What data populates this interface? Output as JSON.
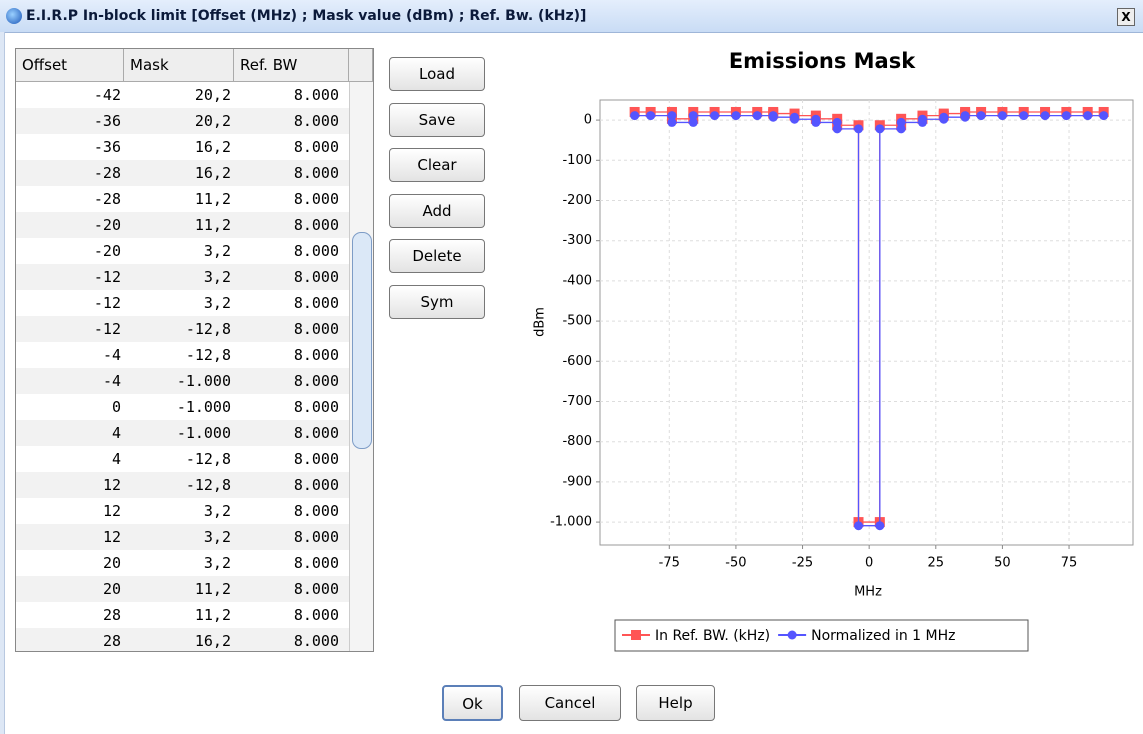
{
  "window": {
    "title": "E.I.R.P In-block limit [Offset (MHz) ; Mask value (dBm) ; Ref. Bw. (kHz)]",
    "close": "X"
  },
  "table": {
    "columns": [
      "Offset",
      "Mask",
      "Ref. BW"
    ],
    "rows": [
      [
        "-42",
        "20,2",
        "8.000"
      ],
      [
        "-36",
        "20,2",
        "8.000"
      ],
      [
        "-36",
        "16,2",
        "8.000"
      ],
      [
        "-28",
        "16,2",
        "8.000"
      ],
      [
        "-28",
        "11,2",
        "8.000"
      ],
      [
        "-20",
        "11,2",
        "8.000"
      ],
      [
        "-20",
        "3,2",
        "8.000"
      ],
      [
        "-12",
        "3,2",
        "8.000"
      ],
      [
        "-12",
        "3,2",
        "8.000"
      ],
      [
        "-12",
        "-12,8",
        "8.000"
      ],
      [
        "-4",
        "-12,8",
        "8.000"
      ],
      [
        "-4",
        "-1.000",
        "8.000"
      ],
      [
        "0",
        "-1.000",
        "8.000"
      ],
      [
        "4",
        "-1.000",
        "8.000"
      ],
      [
        "4",
        "-12,8",
        "8.000"
      ],
      [
        "12",
        "-12,8",
        "8.000"
      ],
      [
        "12",
        "3,2",
        "8.000"
      ],
      [
        "12",
        "3,2",
        "8.000"
      ],
      [
        "20",
        "3,2",
        "8.000"
      ],
      [
        "20",
        "11,2",
        "8.000"
      ],
      [
        "28",
        "11,2",
        "8.000"
      ],
      [
        "28",
        "16,2",
        "8.000"
      ]
    ]
  },
  "side_buttons": [
    "Load",
    "Save",
    "Clear",
    "Add",
    "Delete",
    "Sym"
  ],
  "bottom_buttons": [
    "Ok",
    "Cancel",
    "Help"
  ],
  "chart_data": {
    "type": "line",
    "title": "Emissions Mask",
    "x_label": "MHz",
    "y_label": "dBm",
    "x": [
      -88,
      -82,
      -74,
      -74,
      -66,
      -66,
      -58,
      -50,
      -42,
      -36,
      -36,
      -28,
      -28,
      -20,
      -20,
      -12,
      -12,
      -4,
      -4,
      4,
      4,
      12,
      12,
      20,
      20,
      28,
      28,
      36,
      36,
      42,
      50,
      58,
      66,
      74,
      82,
      88
    ],
    "series": [
      {
        "name": "In Ref. BW. (kHz)",
        "color": "#ff5555",
        "marker": "square",
        "values": [
          20.2,
          20.2,
          20.2,
          3.2,
          3.2,
          20.2,
          20.2,
          20.2,
          20.2,
          20.2,
          16.2,
          16.2,
          11.2,
          11.2,
          3.2,
          3.2,
          -12.8,
          -12.8,
          -1000,
          -1000,
          -12.8,
          -12.8,
          3.2,
          3.2,
          11.2,
          11.2,
          16.2,
          16.2,
          20.2,
          20.2,
          20.2,
          20.2,
          20.2,
          20.2,
          20.2,
          20.2
        ]
      },
      {
        "name": "Normalized in 1 MHz",
        "color": "#5555ff",
        "marker": "circle",
        "values": [
          11.2,
          11.2,
          11.2,
          -5.8,
          -5.8,
          11.2,
          11.2,
          11.2,
          11.2,
          11.2,
          7.2,
          7.2,
          2.2,
          2.2,
          -5.8,
          -5.8,
          -21.8,
          -21.8,
          -1009,
          -1009,
          -21.8,
          -21.8,
          -5.8,
          -5.8,
          2.2,
          2.2,
          7.2,
          7.2,
          11.2,
          11.2,
          11.2,
          11.2,
          11.2,
          11.2,
          11.2,
          11.2
        ]
      }
    ],
    "xlim": [
      -101,
      99
    ],
    "xticks": [
      -75,
      -50,
      -25,
      0,
      25,
      50,
      75
    ],
    "ylim": [
      -1057,
      50
    ],
    "yticks": [
      0,
      -100,
      -200,
      -300,
      -400,
      -500,
      -600,
      -700,
      -800,
      -900,
      {
        "value": -1000,
        "label": "-1.000"
      }
    ],
    "grid": true,
    "legend": "bottom"
  }
}
